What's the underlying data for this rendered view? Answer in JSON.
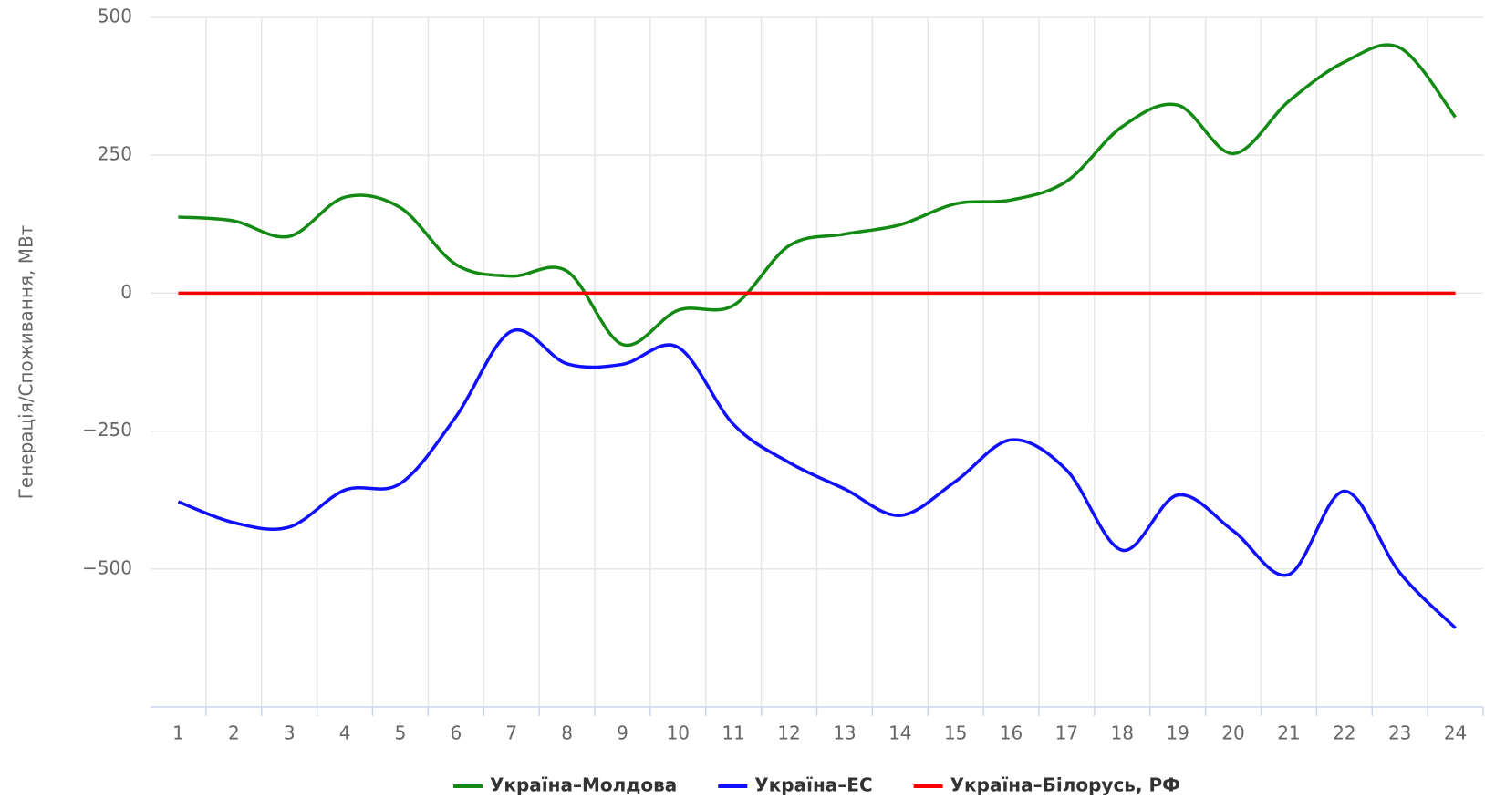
{
  "chart_data": {
    "type": "line",
    "y_label": "Генерація/Споживання, МВт",
    "categories": [
      "1",
      "2",
      "3",
      "4",
      "5",
      "6",
      "7",
      "8",
      "9",
      "10",
      "11",
      "12",
      "13",
      "14",
      "15",
      "16",
      "17",
      "18",
      "19",
      "20",
      "21",
      "22",
      "23",
      "24"
    ],
    "series": [
      {
        "name": "Україна–Молдова",
        "color": "#138a13",
        "values": [
          138,
          131,
          103,
          174,
          155,
          52,
          31,
          40,
          -93,
          -31,
          -22,
          86,
          107,
          124,
          162,
          169,
          203,
          302,
          341,
          253,
          348,
          419,
          445,
          319
        ]
      },
      {
        "name": "Україна–ЕС",
        "color": "#1010ff",
        "values": [
          -378,
          -416,
          -424,
          -357,
          -345,
          -224,
          -69,
          -128,
          -129,
          -98,
          -238,
          -307,
          -355,
          -403,
          -341,
          -266,
          -321,
          -466,
          -366,
          -431,
          -510,
          -359,
          -507,
          -607
        ]
      },
      {
        "name": "Україна–Білорусь, РФ",
        "color": "#ff0000",
        "values": [
          0,
          0,
          0,
          0,
          0,
          0,
          0,
          0,
          0,
          0,
          0,
          0,
          0,
          0,
          0,
          0,
          0,
          0,
          0,
          0,
          0,
          0,
          0,
          0
        ]
      }
    ],
    "ylim": [
      -750,
      500
    ],
    "yticks": [
      {
        "value": -500,
        "label": "−500"
      },
      {
        "value": -250,
        "label": "−250"
      },
      0,
      250,
      500
    ],
    "grid": true
  }
}
